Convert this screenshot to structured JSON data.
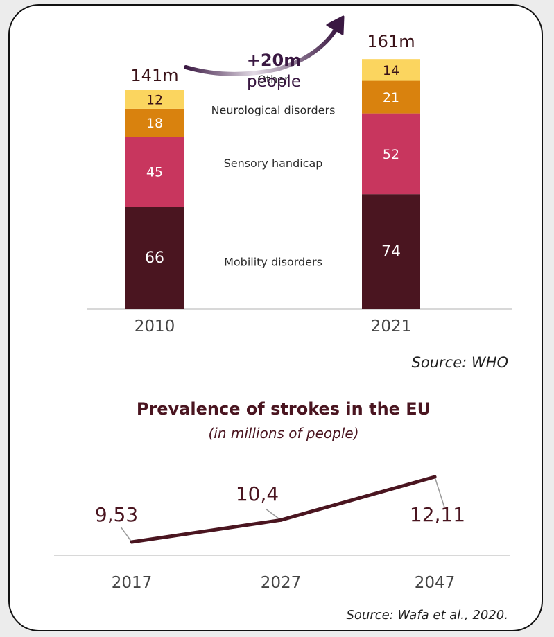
{
  "chart_data": [
    {
      "type": "bar",
      "stacked": true,
      "categories": [
        "2010",
        "2021"
      ],
      "series": [
        {
          "name": "Mobility disorders",
          "values": [
            66,
            74
          ],
          "color": "#4a1520"
        },
        {
          "name": "Sensory handicap",
          "values": [
            45,
            52
          ],
          "color": "#c8365e"
        },
        {
          "name": "Neurological disorders",
          "values": [
            18,
            21
          ],
          "color": "#d9820e"
        },
        {
          "name": "Other",
          "values": [
            12,
            14
          ],
          "color": "#fbd55f"
        }
      ],
      "totals": [
        "141m",
        "161m"
      ],
      "annotation": {
        "line1": "+20m",
        "line2": "people"
      },
      "source": "Source: WHO"
    },
    {
      "type": "line",
      "title": "Prevalence of strokes in the EU",
      "subtitle": "(in millions of people)",
      "x": [
        "2017",
        "2027",
        "2047"
      ],
      "values": [
        9.53,
        10.4,
        12.11
      ],
      "value_labels": [
        "9,53",
        "10,4",
        "12,11"
      ],
      "line_color": "#4a1520",
      "source": "Source: Wafa et al., 2020."
    }
  ]
}
